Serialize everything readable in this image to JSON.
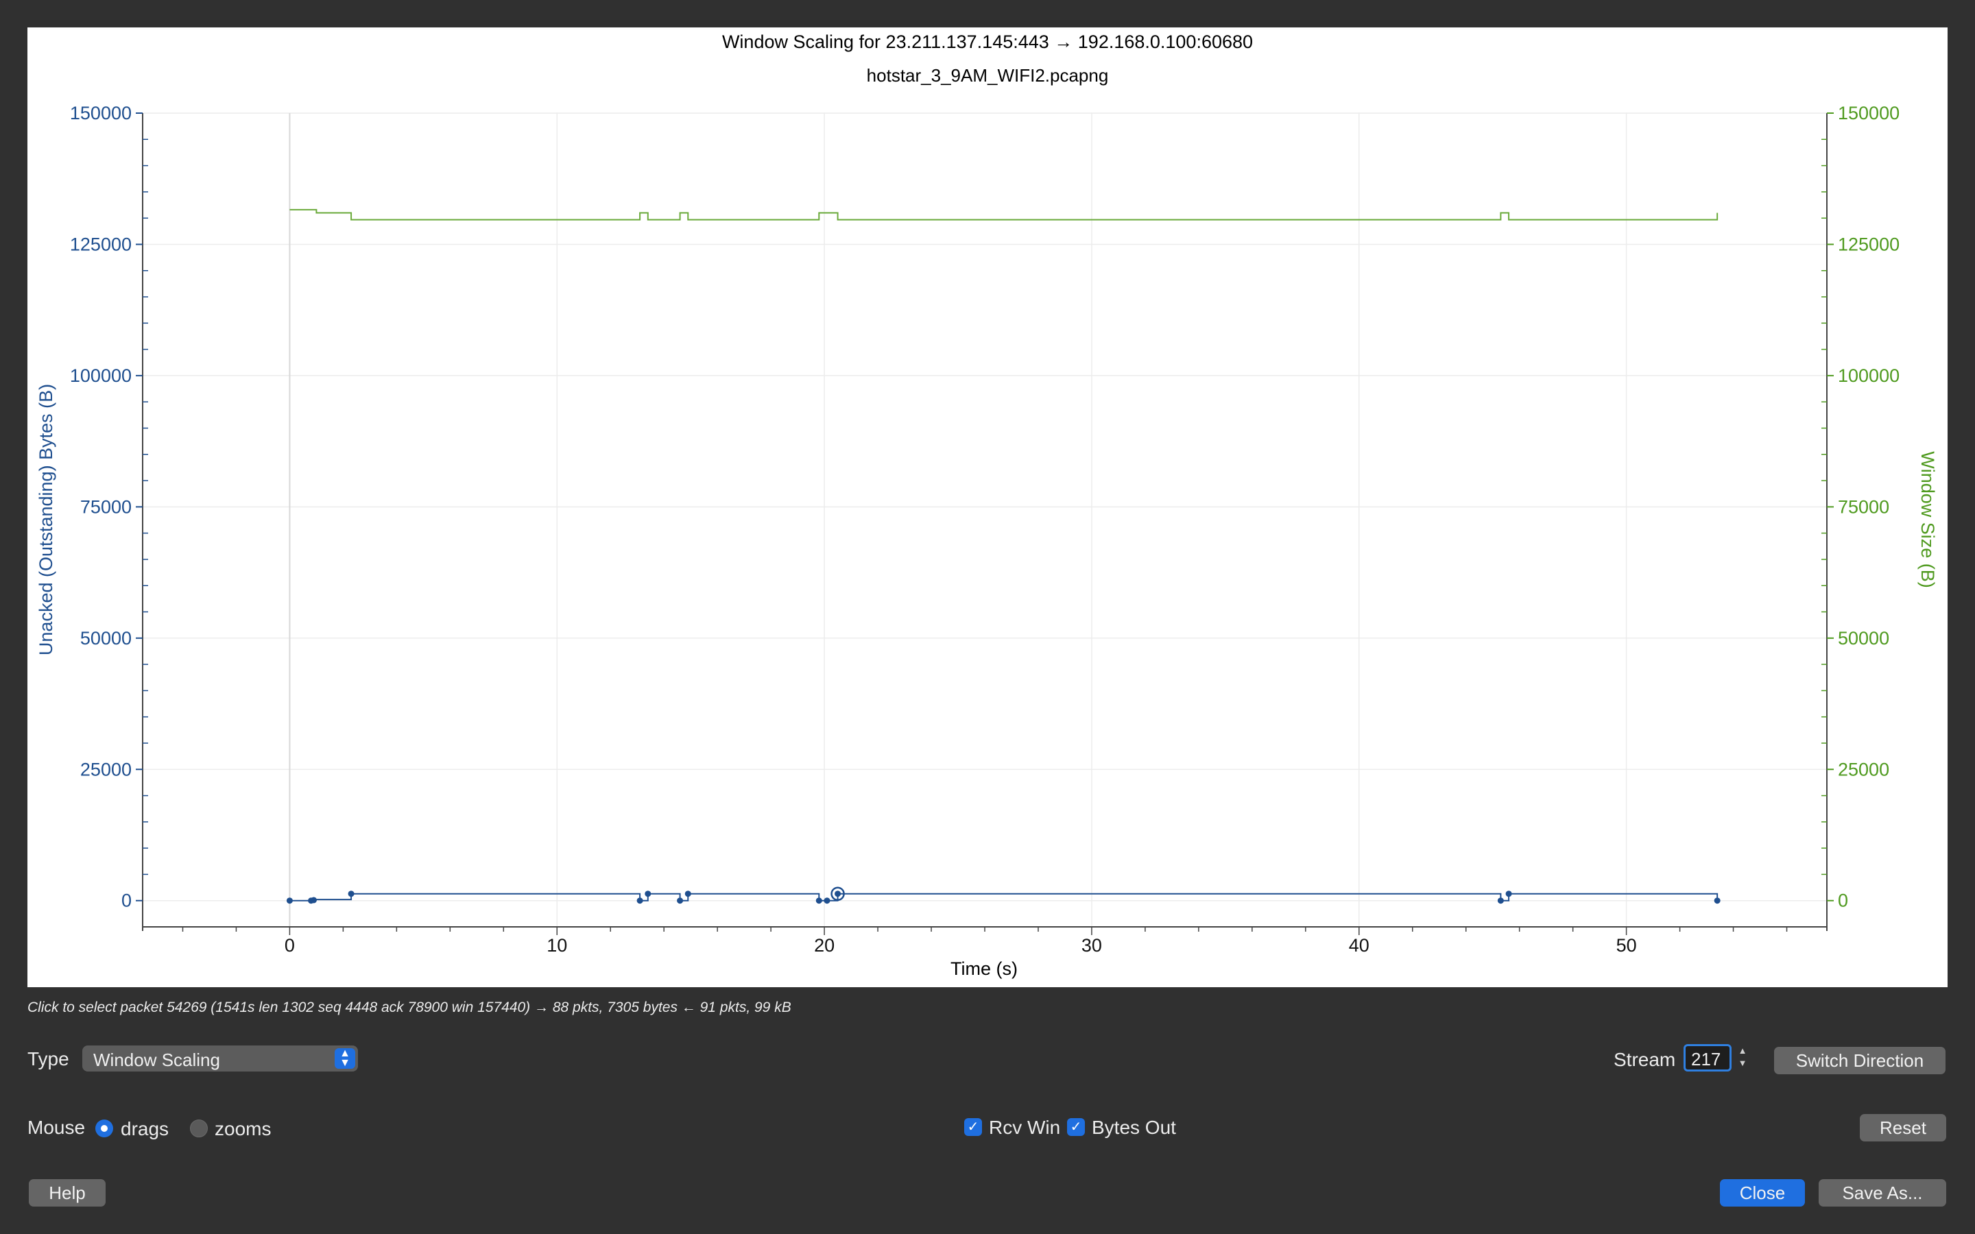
{
  "chart_data": {
    "type": "line",
    "title": "Window Scaling for 23.211.137.145:443 → 192.168.0.100:60680",
    "subtitle": "hotstar_3_9AM_WIFI2.pcapng",
    "xlabel": "Time (s)",
    "ylabel_left": "Unacked (Outstanding) Bytes (B)",
    "ylabel_right": "Window Size (B)",
    "xlim": [
      -5.5,
      57.5
    ],
    "ylim": [
      -5000,
      150000
    ],
    "x_ticks": [
      0,
      10,
      20,
      30,
      40,
      50
    ],
    "y_ticks": [
      0,
      25000,
      50000,
      75000,
      100000,
      125000,
      150000
    ],
    "grid": true,
    "series": [
      {
        "name": "Rcv Win",
        "color": "#6aaa3a",
        "step": true,
        "points": [
          [
            0,
            131600
          ],
          [
            0.8,
            131600
          ],
          [
            1.0,
            131000
          ],
          [
            2.3,
            131000
          ],
          [
            2.3,
            129700
          ],
          [
            13.1,
            129700
          ],
          [
            13.1,
            131000
          ],
          [
            13.4,
            131000
          ],
          [
            13.4,
            129700
          ],
          [
            14.6,
            129700
          ],
          [
            14.6,
            131000
          ],
          [
            14.9,
            131000
          ],
          [
            14.9,
            129700
          ],
          [
            19.8,
            129700
          ],
          [
            19.8,
            131000
          ],
          [
            20.5,
            131000
          ],
          [
            20.5,
            129700
          ],
          [
            45.3,
            129700
          ],
          [
            45.3,
            131000
          ],
          [
            45.6,
            131000
          ],
          [
            45.6,
            129700
          ],
          [
            53.4,
            129700
          ],
          [
            53.4,
            131000
          ]
        ]
      },
      {
        "name": "Bytes Out",
        "color": "#1f4f8f",
        "step": true,
        "points": [
          [
            0,
            0
          ],
          [
            0.8,
            0
          ],
          [
            0.9,
            200
          ],
          [
            2.3,
            200
          ],
          [
            2.3,
            1302
          ],
          [
            13.1,
            1302
          ],
          [
            13.1,
            0
          ],
          [
            13.2,
            0
          ],
          [
            13.4,
            1302
          ],
          [
            14.6,
            1302
          ],
          [
            14.6,
            0
          ],
          [
            14.9,
            1302
          ],
          [
            19.8,
            1302
          ],
          [
            19.8,
            0
          ],
          [
            20.1,
            0
          ],
          [
            20.5,
            1302
          ],
          [
            45.3,
            1302
          ],
          [
            45.3,
            0
          ],
          [
            45.6,
            1302
          ],
          [
            53.4,
            1302
          ],
          [
            53.4,
            0
          ]
        ],
        "markers": [
          [
            0,
            0
          ],
          [
            0.8,
            0
          ],
          [
            0.9,
            100
          ],
          [
            2.3,
            1302
          ],
          [
            13.1,
            0
          ],
          [
            13.4,
            1302
          ],
          [
            14.6,
            0
          ],
          [
            14.9,
            1302
          ],
          [
            19.8,
            0
          ],
          [
            20.1,
            0
          ],
          [
            20.5,
            1302
          ],
          [
            45.3,
            0
          ],
          [
            45.6,
            1302
          ],
          [
            53.4,
            0
          ]
        ],
        "selected_marker": [
          20.5,
          1302
        ]
      }
    ]
  },
  "status": {
    "text": "Click to select packet 54269 (1541s len 1302 seq 4448 ack 78900 win 157440) → 88 pkts, 7305 bytes ← 91 pkts, 99 kB"
  },
  "controls": {
    "type_label": "Type",
    "type_value": "Window Scaling",
    "stream_label": "Stream",
    "stream_value": "217",
    "switch_direction_label": "Switch Direction",
    "mouse_label": "Mouse",
    "drags_label": "drags",
    "zooms_label": "zooms",
    "mouse_mode": "drags",
    "rcv_win_label": "Rcv Win",
    "rcv_win_checked": true,
    "bytes_out_label": "Bytes Out",
    "bytes_out_checked": true,
    "reset_label": "Reset",
    "help_label": "Help",
    "close_label": "Close",
    "save_as_label": "Save As..."
  },
  "colors": {
    "accent": "#1f6fe0",
    "left_axis": "#1f4f8f",
    "right_axis": "#4f9a1f"
  }
}
